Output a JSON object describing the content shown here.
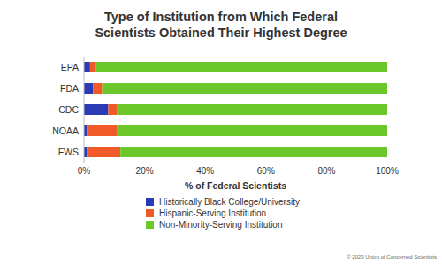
{
  "chart_data": {
    "type": "bar",
    "orientation": "horizontal",
    "stacked": true,
    "title": "Type of Institution from Which Federal Scientists Obtained Their Highest Degree",
    "x_label": "% of Federal Scientists",
    "source": "© 2023 Union of Concerned Scientists",
    "categories": [
      "EPA",
      "FDA",
      "CDC",
      "NOAA",
      "FWS"
    ],
    "series": [
      {
        "name": "Historically Black College/University",
        "color": "#2b3bb5",
        "values": [
          2,
          3,
          8,
          1,
          1
        ]
      },
      {
        "name": "Hispanic-Serving Institution",
        "color": "#f05a28",
        "values": [
          2,
          3,
          3,
          10,
          11
        ]
      },
      {
        "name": "Non-Minority-Serving Institution",
        "color": "#6cc72b",
        "values": [
          96,
          94,
          89,
          89,
          88
        ]
      }
    ],
    "xlim": [
      0,
      100
    ],
    "xticks": [
      {
        "value": 0,
        "label": "0%"
      },
      {
        "value": 20,
        "label": "20%"
      },
      {
        "value": 40,
        "label": "40%"
      },
      {
        "value": 60,
        "label": "60%"
      },
      {
        "value": 80,
        "label": "80%"
      },
      {
        "value": 100,
        "label": "100%"
      }
    ],
    "grid": false,
    "legend": "bottom"
  }
}
